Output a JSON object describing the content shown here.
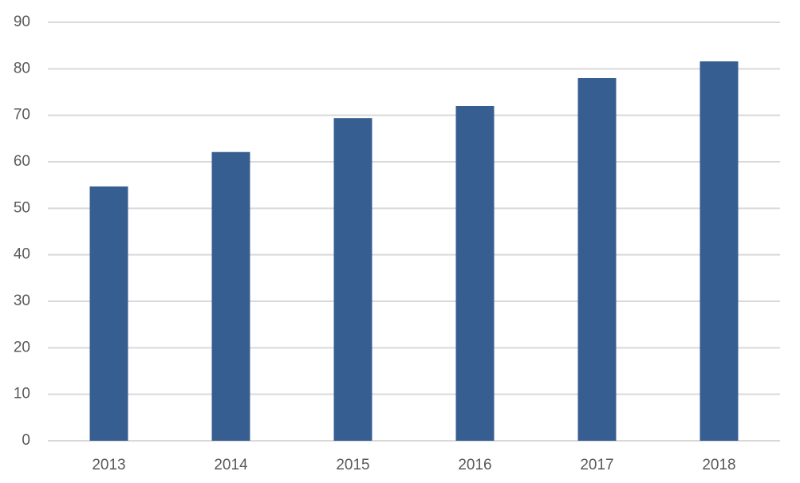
{
  "chart_data": {
    "type": "bar",
    "categories": [
      "2013",
      "2014",
      "2015",
      "2016",
      "2017",
      "2018"
    ],
    "values": [
      54.7,
      62.1,
      69.4,
      72.0,
      78.0,
      81.6
    ],
    "color": "#375e91",
    "ylim": [
      0,
      90
    ],
    "yticks": [
      0,
      10,
      20,
      30,
      40,
      50,
      60,
      70,
      80,
      90
    ],
    "grid": true
  }
}
